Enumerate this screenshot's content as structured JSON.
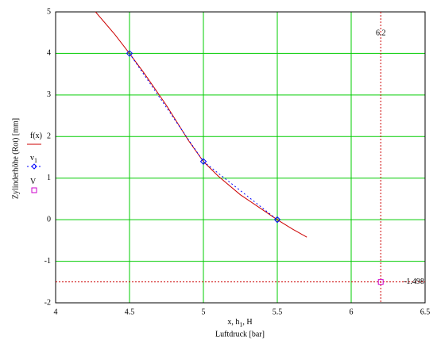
{
  "chart_data": {
    "type": "line",
    "ylabel": "Zylinderhöhe (Rot) [mm]",
    "xlabel": [
      "x, h",
      "1",
      ", H"
    ],
    "xlabel2": "Luftdruck [bar]",
    "xlim": [
      4,
      6.5
    ],
    "xticks": [
      4,
      4.5,
      5,
      5.5,
      6,
      6.5
    ],
    "ylim": [
      -2,
      5
    ],
    "yticks": [
      -2,
      -1,
      0,
      1,
      2,
      3,
      4,
      5
    ],
    "grid": true,
    "grid_color": "#00cc00",
    "series": [
      {
        "name": "f(x)",
        "color": "#cc0000",
        "style": "solid",
        "marker": "none",
        "x": [
          4.27,
          4.4,
          4.5,
          4.6,
          4.75,
          4.9,
          5,
          5.1,
          5.25,
          5.4,
          5.5,
          5.6,
          5.7
        ],
        "values": [
          5,
          4.46,
          4,
          3.52,
          2.75,
          1.9,
          1.4,
          1.05,
          0.6,
          0.24,
          0,
          -0.22,
          -0.42
        ]
      },
      {
        "name": "v",
        "name_sub": "1",
        "color": "#0000ff",
        "style": "dotted",
        "marker": "diamond",
        "x": [
          4.5,
          5,
          5.5
        ],
        "values": [
          4,
          1.4,
          0
        ]
      },
      {
        "name": "V",
        "color": "#cc00cc",
        "style": "none",
        "marker": "square",
        "x": [
          6.2
        ],
        "values": [
          -1.498
        ]
      }
    ],
    "crosshair": {
      "x": 6.2,
      "y": -1.498,
      "color": "#cc0000"
    }
  }
}
